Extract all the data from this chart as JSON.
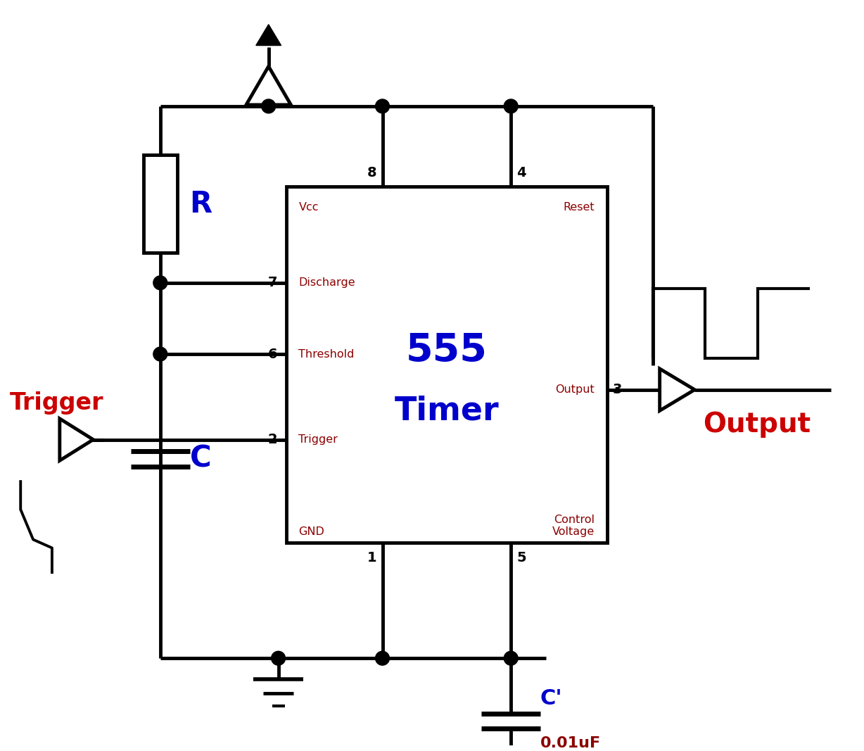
{
  "bg_color": "#ffffff",
  "line_color": "#000000",
  "line_width": 3.5,
  "blue_color": "#0000CD",
  "dark_red": "#8B0000",
  "red_color": "#CC0000",
  "title_555": "555",
  "title_timer": "Timer",
  "label_R": "R",
  "label_C": "C",
  "label_C_prime": "C'",
  "label_capacitance": "0.01uF",
  "label_Trigger": "Trigger",
  "label_Output": "Output",
  "label_vcc": "Vcc",
  "label_reset": "Reset",
  "label_discharge": "Discharge",
  "label_threshold": "Threshold",
  "label_trigger_pin": "Trigger",
  "label_gnd": "GND",
  "label_output_pin": "Output",
  "label_control": "Control\nVoltage"
}
